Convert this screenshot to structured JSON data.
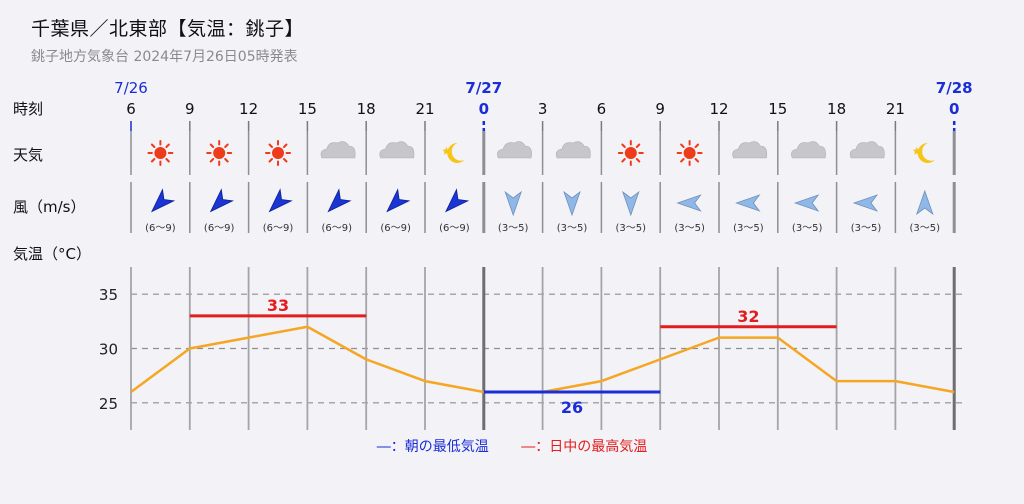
{
  "header": {
    "title": "千葉県／北東部【気温：銚子】",
    "subtitle": "銚子地方気象台 2024年7月26日05時発表"
  },
  "row_labels": {
    "time": "時刻",
    "weather": "天気",
    "wind": "風（m/s）",
    "temp": "気温（°C）"
  },
  "legend": {
    "low": "―：朝の最低気温",
    "high": "―：日中の最高気温"
  },
  "colors": {
    "line": "#f5a623",
    "low": "#1a2dd6",
    "high": "#e31d1d",
    "date": "#1a2dd6",
    "wind_strong": "#1a35d1",
    "wind_weak": "#8fb8e8"
  },
  "chart_data": {
    "type": "line",
    "date_labels": [
      {
        "index": 0,
        "label": "7/26"
      },
      {
        "index": 6,
        "label": "7/27"
      },
      {
        "index": 14,
        "label": "7/28"
      }
    ],
    "hours": [
      "6",
      "9",
      "12",
      "15",
      "18",
      "21",
      "0",
      "3",
      "6",
      "9",
      "12",
      "15",
      "18",
      "21",
      "0"
    ],
    "weather": [
      "sun-icon",
      "sun-icon",
      "sun-icon",
      "cloud-icon",
      "cloud-icon",
      "moon-icon",
      "cloud-icon",
      "cloud-icon",
      "sun-icon",
      "sun-icon",
      "cloud-icon",
      "cloud-icon",
      "cloud-icon",
      "moon-icon"
    ],
    "wind_direction": [
      "SW",
      "SW",
      "SW",
      "SW",
      "SW",
      "SW",
      "N",
      "N",
      "N",
      "E",
      "E",
      "E",
      "E",
      "S"
    ],
    "wind_speed": [
      "(6〜9)",
      "(6〜9)",
      "(6〜9)",
      "(6〜9)",
      "(6〜9)",
      "(6〜9)",
      "(3〜5)",
      "(3〜5)",
      "(3〜5)",
      "(3〜5)",
      "(3〜5)",
      "(3〜5)",
      "(3〜5)",
      "(3〜5)"
    ],
    "wind_strength": [
      "strong",
      "strong",
      "strong",
      "strong",
      "strong",
      "strong",
      "weak",
      "weak",
      "weak",
      "weak",
      "weak",
      "weak",
      "weak",
      "weak"
    ],
    "temperature": [
      26,
      30,
      31,
      32,
      29,
      27,
      26,
      26,
      27,
      29,
      31,
      31,
      27,
      27,
      26
    ],
    "ylim": [
      22.5,
      37.5
    ],
    "yticks": [
      25,
      30,
      35
    ],
    "grid": true,
    "min_temp": {
      "value": "26",
      "from_index": 6,
      "to_index": 9
    },
    "max_temp": [
      {
        "value": "33",
        "from_index": 1,
        "to_index": 4
      },
      {
        "value": "32",
        "from_index": 9,
        "to_index": 12
      }
    ]
  }
}
